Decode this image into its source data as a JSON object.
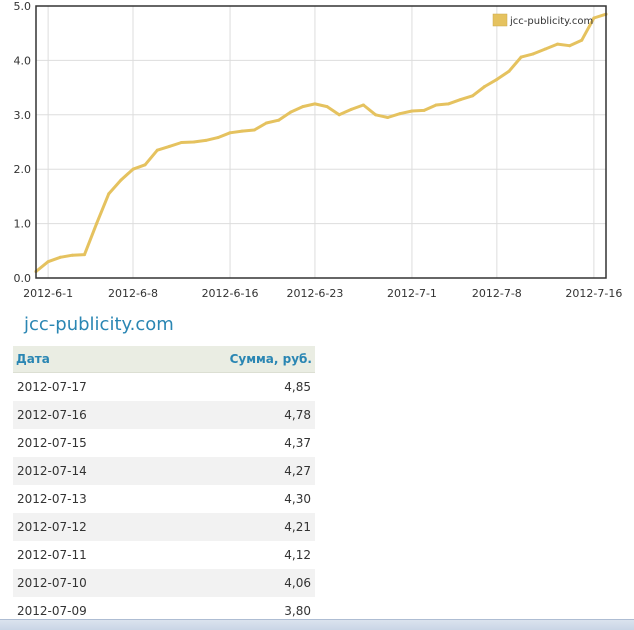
{
  "chart_data": {
    "type": "line",
    "ylim": [
      0,
      5
    ],
    "yticks": [
      "0.0",
      "1.0",
      "2.0",
      "3.0",
      "4.0",
      "5.0"
    ],
    "xticks": [
      "2012-6-1",
      "2012-6-8",
      "2012-6-16",
      "2012-6-23",
      "2012-7-1",
      "2012-7-8",
      "2012-7-16"
    ],
    "xtick_dates": [
      "2012-06-01",
      "2012-06-08",
      "2012-06-16",
      "2012-06-23",
      "2012-07-01",
      "2012-07-08",
      "2012-07-16"
    ],
    "xlim": [
      "2012-05-31",
      "2012-07-17"
    ],
    "grid": true,
    "legend_position": "top-right",
    "series": [
      {
        "name": "jcc-publicity.com",
        "color": "#e5c25f",
        "points": [
          [
            "2012-05-31",
            0.12
          ],
          [
            "2012-06-01",
            0.3
          ],
          [
            "2012-06-02",
            0.38
          ],
          [
            "2012-06-03",
            0.42
          ],
          [
            "2012-06-04",
            0.43
          ],
          [
            "2012-06-05",
            1.0
          ],
          [
            "2012-06-06",
            1.55
          ],
          [
            "2012-06-07",
            1.8
          ],
          [
            "2012-06-08",
            2.0
          ],
          [
            "2012-06-09",
            2.08
          ],
          [
            "2012-06-10",
            2.35
          ],
          [
            "2012-06-11",
            2.42
          ],
          [
            "2012-06-12",
            2.49
          ],
          [
            "2012-06-13",
            2.5
          ],
          [
            "2012-06-14",
            2.53
          ],
          [
            "2012-06-15",
            2.58
          ],
          [
            "2012-06-16",
            2.67
          ],
          [
            "2012-06-17",
            2.7
          ],
          [
            "2012-06-18",
            2.72
          ],
          [
            "2012-06-19",
            2.85
          ],
          [
            "2012-06-20",
            2.9
          ],
          [
            "2012-06-21",
            3.05
          ],
          [
            "2012-06-22",
            3.15
          ],
          [
            "2012-06-23",
            3.2
          ],
          [
            "2012-06-24",
            3.15
          ],
          [
            "2012-06-25",
            3.0
          ],
          [
            "2012-06-26",
            3.1
          ],
          [
            "2012-06-27",
            3.18
          ],
          [
            "2012-06-28",
            3.0
          ],
          [
            "2012-06-29",
            2.95
          ],
          [
            "2012-06-30",
            3.02
          ],
          [
            "2012-07-01",
            3.07
          ],
          [
            "2012-07-02",
            3.08
          ],
          [
            "2012-07-03",
            3.18
          ],
          [
            "2012-07-04",
            3.2
          ],
          [
            "2012-07-05",
            3.28
          ],
          [
            "2012-07-06",
            3.35
          ],
          [
            "2012-07-07",
            3.52
          ],
          [
            "2012-07-08",
            3.65
          ],
          [
            "2012-07-09",
            3.8
          ],
          [
            "2012-07-10",
            4.06
          ],
          [
            "2012-07-11",
            4.12
          ],
          [
            "2012-07-12",
            4.21
          ],
          [
            "2012-07-13",
            4.3
          ],
          [
            "2012-07-14",
            4.27
          ],
          [
            "2012-07-15",
            4.37
          ],
          [
            "2012-07-16",
            4.78
          ],
          [
            "2012-07-17",
            4.85
          ]
        ]
      }
    ]
  },
  "site_title": "jcc-publicity.com",
  "table": {
    "headers": {
      "date": "Дата",
      "sum": "Сумма, руб."
    },
    "rows": [
      {
        "date": "2012-07-17",
        "sum": "4,85"
      },
      {
        "date": "2012-07-16",
        "sum": "4,78"
      },
      {
        "date": "2012-07-15",
        "sum": "4,37"
      },
      {
        "date": "2012-07-14",
        "sum": "4,27"
      },
      {
        "date": "2012-07-13",
        "sum": "4,30"
      },
      {
        "date": "2012-07-12",
        "sum": "4,21"
      },
      {
        "date": "2012-07-11",
        "sum": "4,12"
      },
      {
        "date": "2012-07-10",
        "sum": "4,06"
      },
      {
        "date": "2012-07-09",
        "sum": "3,80"
      }
    ]
  }
}
